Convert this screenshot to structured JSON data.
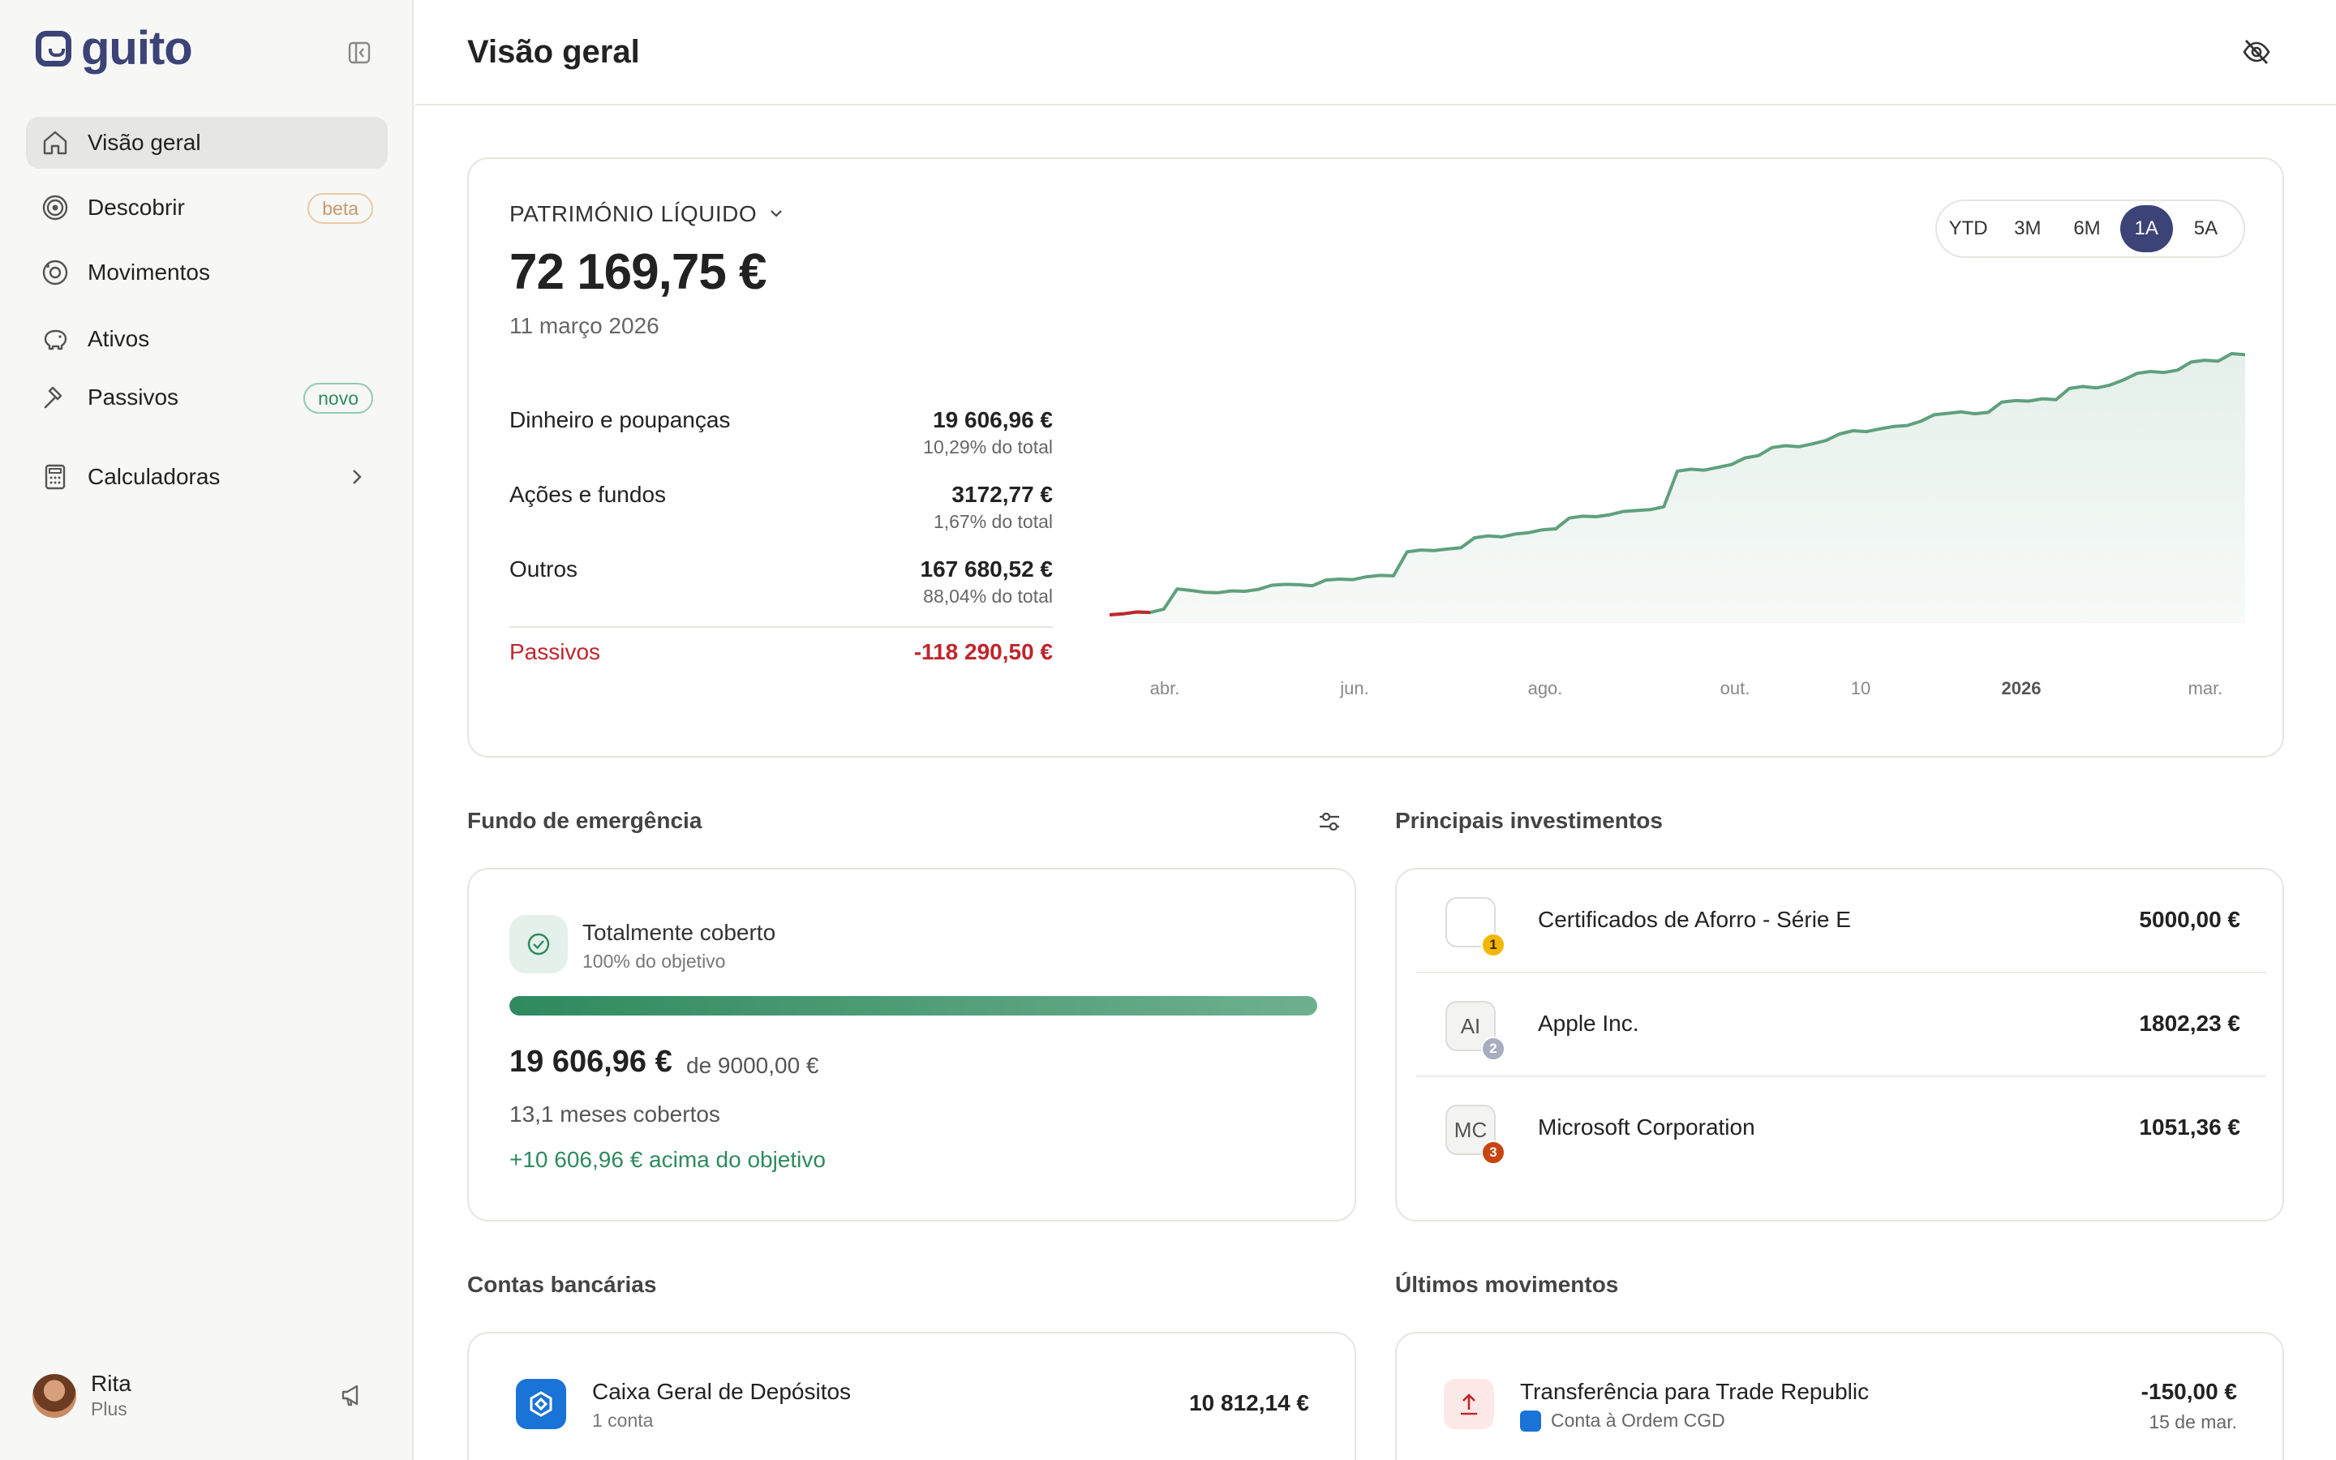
{
  "brand": {
    "name": "guito"
  },
  "sidebar": {
    "items": [
      {
        "label": "Visão geral",
        "icon": "home-icon",
        "active": true
      },
      {
        "label": "Descobrir",
        "icon": "target-icon",
        "badge": "beta"
      },
      {
        "label": "Movimentos",
        "icon": "coins-icon"
      },
      {
        "label": "Ativos",
        "icon": "piggy-bank-icon"
      },
      {
        "label": "Passivos",
        "icon": "hammer-icon",
        "badge": "novo"
      },
      {
        "label": "Calculadoras",
        "icon": "calculator-icon"
      }
    ],
    "user": {
      "name": "Rita",
      "plan": "Plus"
    }
  },
  "header": {
    "title": "Visão geral"
  },
  "net_worth": {
    "label": "PATRIMÓNIO LÍQUIDO",
    "value": "72 169,75 €",
    "date": "11 março 2026",
    "breakdown": [
      {
        "label": "Dinheiro e poupanças",
        "value": "19 606,96 €",
        "pct": "10,29% do total"
      },
      {
        "label": "Ações e fundos",
        "value": "3172,77 €",
        "pct": "1,67% do total"
      },
      {
        "label": "Outros",
        "value": "167 680,52 €",
        "pct": "88,04% do total"
      }
    ],
    "liabilities": {
      "label": "Passivos",
      "value": "-118 290,50 €"
    },
    "ranges": [
      "YTD",
      "3M",
      "6M",
      "1A",
      "5A"
    ],
    "selected_range": "1A"
  },
  "chart_data": {
    "type": "area",
    "x_tick_labels": [
      "abr.",
      "jun.",
      "ago.",
      "out.",
      "10",
      "2026",
      "mar."
    ],
    "values": [
      0,
      0.2,
      0.6,
      0.5,
      1.2,
      5.5,
      5.2,
      4.8,
      4.7,
      5.1,
      5.0,
      5.4,
      6.3,
      6.5,
      6.4,
      6.2,
      7.4,
      7.6,
      7.5,
      8.1,
      8.4,
      8.3,
      13.4,
      13.8,
      13.7,
      14.0,
      14.3,
      16.4,
      16.8,
      16.6,
      17.2,
      17.5,
      18.1,
      18.3,
      20.6,
      21.0,
      20.9,
      21.3,
      22.0,
      22.2,
      22.4,
      23.0,
      30.6,
      31.0,
      30.8,
      31.4,
      32.0,
      33.4,
      33.9,
      35.6,
      36.0,
      35.8,
      36.4,
      37.1,
      38.5,
      39.2,
      39.0,
      39.6,
      40.1,
      40.3,
      41.2,
      42.6,
      42.9,
      43.2,
      42.8,
      43.1,
      45.3,
      45.6,
      45.5,
      46.0,
      45.8,
      48.2,
      48.6,
      48.3,
      48.9,
      50.0,
      51.4,
      51.8,
      51.6,
      52.1,
      53.8,
      54.2,
      54.0,
      55.6,
      55.4
    ],
    "line_color": "#5fa07e",
    "fill_color": "#e5f0ea",
    "negative_color": "#c0262d",
    "grid": false
  },
  "emergency_fund": {
    "section_title": "Fundo de emergência",
    "status": "Totalmente coberto",
    "pct_label": "100% do objetivo",
    "progress": 1.0,
    "amount": "19 606,96 €",
    "of_label": "de 9000,00 €",
    "months": "13,1 meses cobertos",
    "above": "+10 606,96 € acima do objetivo"
  },
  "investments": {
    "section_title": "Principais investimentos",
    "items": [
      {
        "logo": "",
        "rank": "1",
        "rank_color": "#f2b705",
        "name": "Certificados de Aforro - Série E",
        "value": "5000,00 €"
      },
      {
        "logo": "AI",
        "rank": "2",
        "rank_color": "#a8adc0",
        "name": "Apple Inc.",
        "value": "1802,23 €"
      },
      {
        "logo": "MC",
        "rank": "3",
        "rank_color": "#c8450f",
        "name": "Microsoft Corporation",
        "value": "1051,36 €"
      }
    ]
  },
  "bank_accounts": {
    "section_title": "Contas bancárias",
    "items": [
      {
        "name": "Caixa Geral de Depósitos",
        "sub": "1 conta",
        "value": "10 812,14 €"
      }
    ]
  },
  "movements": {
    "section_title": "Últimos movimentos",
    "items": [
      {
        "name": "Transferência para Trade Republic",
        "sub": "Conta à Ordem CGD",
        "value": "-150,00 €",
        "date": "15 de mar."
      }
    ]
  }
}
